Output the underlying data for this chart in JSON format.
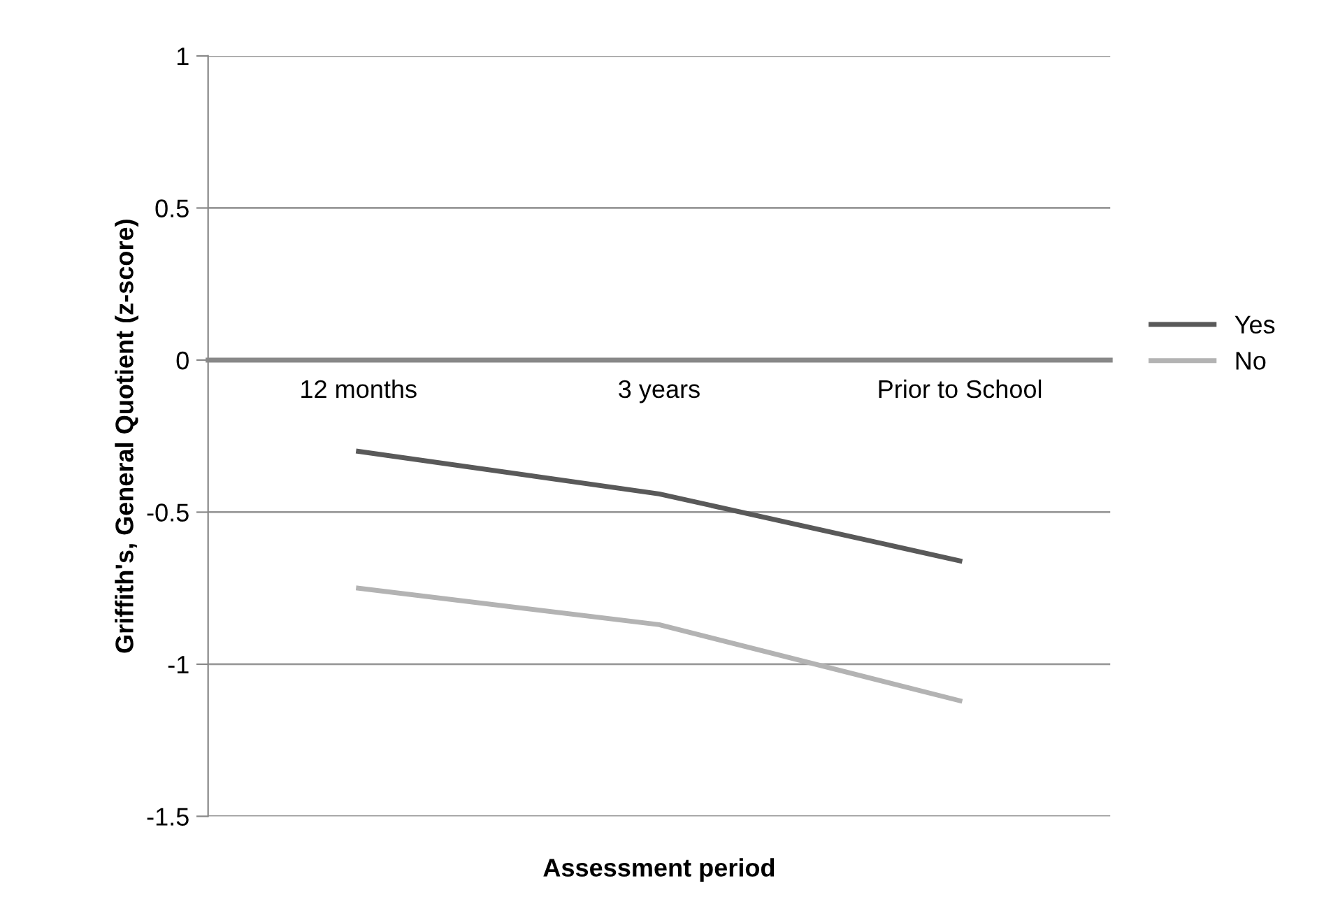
{
  "chart_data": {
    "type": "line",
    "xlabel": "Assessment period",
    "ylabel": "Griffith's, General Quotient (z-score)",
    "categories": [
      "12 months",
      "3 years",
      "Prior to School"
    ],
    "series": [
      {
        "name": "Yes",
        "color": "#595959",
        "values": [
          -0.3,
          -0.44,
          -0.66
        ]
      },
      {
        "name": "No",
        "color": "#b3b3b3",
        "values": [
          -0.75,
          -0.87,
          -1.12
        ]
      }
    ],
    "ylim": [
      -1.5,
      1
    ],
    "yticks": [
      -1.5,
      -1,
      -0.5,
      0,
      0.5,
      1
    ],
    "grid": "y",
    "legend": "right",
    "marker": "none",
    "line_style": "solid"
  }
}
